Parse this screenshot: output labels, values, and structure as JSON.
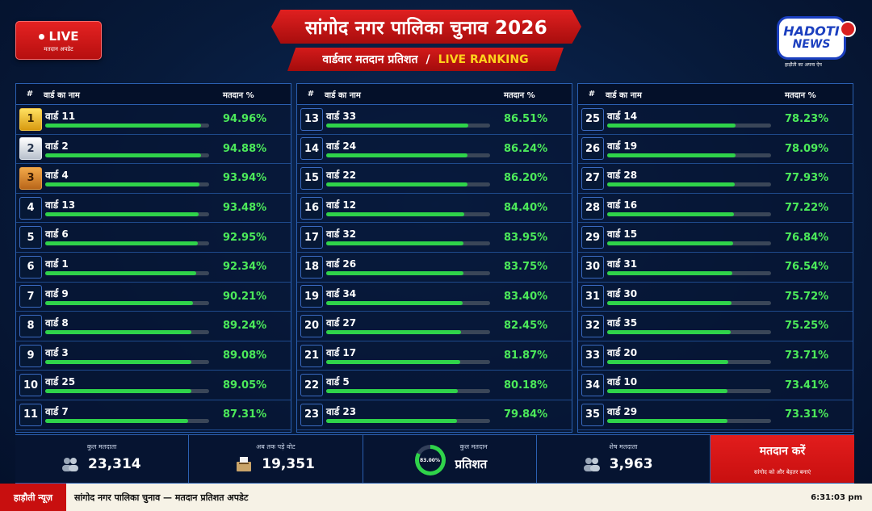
{
  "header": {
    "live_label": "LIVE",
    "live_sub": "मतदान अपडेट",
    "title": "सांगोद नगर पालिका चुनाव 2026",
    "subtitle": "वार्डवार मतदान प्रतिशत",
    "subtitle_sep": "/",
    "subtitle_live": "LIVE RANKING"
  },
  "logo": {
    "line1": "HADOTI",
    "line2": "NEWS",
    "tagline": "हाड़ौती का अपना ऐप"
  },
  "columns": {
    "num": "#",
    "name": "वार्ड का नाम",
    "pct": "मतदान %"
  },
  "colors": {
    "accent_red": "#c80f0f",
    "bar_green": "#2fd34a",
    "pct_green": "#4cea5a",
    "gold": "#d89a10"
  },
  "panels": [
    [
      {
        "rank": "1",
        "ward": "वार्ड 11",
        "pct": "94.96%",
        "value": 94.96
      },
      {
        "rank": "2",
        "ward": "वार्ड 2",
        "pct": "94.88%",
        "value": 94.88
      },
      {
        "rank": "3",
        "ward": "वार्ड 4",
        "pct": "93.94%",
        "value": 93.94
      },
      {
        "rank": "4",
        "ward": "वार्ड 13",
        "pct": "93.48%",
        "value": 93.48
      },
      {
        "rank": "5",
        "ward": "वार्ड 6",
        "pct": "92.95%",
        "value": 92.95
      },
      {
        "rank": "6",
        "ward": "वार्ड 1",
        "pct": "92.34%",
        "value": 92.34
      },
      {
        "rank": "7",
        "ward": "वार्ड 9",
        "pct": "90.21%",
        "value": 90.21
      },
      {
        "rank": "8",
        "ward": "वार्ड 8",
        "pct": "89.24%",
        "value": 89.24
      },
      {
        "rank": "9",
        "ward": "वार्ड 3",
        "pct": "89.08%",
        "value": 89.08
      },
      {
        "rank": "10",
        "ward": "वार्ड 25",
        "pct": "89.05%",
        "value": 89.05
      },
      {
        "rank": "11",
        "ward": "वार्ड 7",
        "pct": "87.31%",
        "value": 87.31
      }
    ],
    [
      {
        "rank": "13",
        "ward": "वार्ड 33",
        "pct": "86.51%",
        "value": 86.51
      },
      {
        "rank": "14",
        "ward": "वार्ड 24",
        "pct": "86.24%",
        "value": 86.24
      },
      {
        "rank": "15",
        "ward": "वार्ड 22",
        "pct": "86.20%",
        "value": 86.2
      },
      {
        "rank": "16",
        "ward": "वार्ड 12",
        "pct": "84.40%",
        "value": 84.4
      },
      {
        "rank": "17",
        "ward": "वार्ड 32",
        "pct": "83.95%",
        "value": 83.95
      },
      {
        "rank": "18",
        "ward": "वार्ड 26",
        "pct": "83.75%",
        "value": 83.75
      },
      {
        "rank": "19",
        "ward": "वार्ड 34",
        "pct": "83.40%",
        "value": 83.4
      },
      {
        "rank": "20",
        "ward": "वार्ड 27",
        "pct": "82.45%",
        "value": 82.45
      },
      {
        "rank": "21",
        "ward": "वार्ड 17",
        "pct": "81.87%",
        "value": 81.87
      },
      {
        "rank": "22",
        "ward": "वार्ड 5",
        "pct": "80.18%",
        "value": 80.18
      },
      {
        "rank": "23",
        "ward": "वार्ड 23",
        "pct": "79.84%",
        "value": 79.84
      }
    ],
    [
      {
        "rank": "25",
        "ward": "वार्ड 14",
        "pct": "78.23%",
        "value": 78.23
      },
      {
        "rank": "26",
        "ward": "वार्ड 19",
        "pct": "78.09%",
        "value": 78.09
      },
      {
        "rank": "27",
        "ward": "वार्ड 28",
        "pct": "77.93%",
        "value": 77.93
      },
      {
        "rank": "28",
        "ward": "वार्ड 16",
        "pct": "77.22%",
        "value": 77.22
      },
      {
        "rank": "29",
        "ward": "वार्ड 15",
        "pct": "76.84%",
        "value": 76.84
      },
      {
        "rank": "30",
        "ward": "वार्ड 31",
        "pct": "76.54%",
        "value": 76.54
      },
      {
        "rank": "31",
        "ward": "वार्ड 30",
        "pct": "75.72%",
        "value": 75.72
      },
      {
        "rank": "32",
        "ward": "वार्ड 35",
        "pct": "75.25%",
        "value": 75.25
      },
      {
        "rank": "33",
        "ward": "वार्ड 20",
        "pct": "73.71%",
        "value": 73.71
      },
      {
        "rank": "34",
        "ward": "वार्ड 10",
        "pct": "73.41%",
        "value": 73.41
      },
      {
        "rank": "35",
        "ward": "वार्ड 29",
        "pct": "73.31%",
        "value": 73.31
      }
    ]
  ],
  "stats": {
    "total_voters_label": "कुल मतदाता",
    "total_voters": "23,314",
    "votes_cast_label": "अब तक पड़े वोट",
    "votes_cast": "19,351",
    "turnout_label": "कुल मतदान",
    "turnout_ring": "83.00%",
    "turnout_value": 83.0,
    "turnout_word": "प्रतिशत",
    "remaining_label": "शेष मतदाता",
    "remaining": "3,963",
    "cta_main": "मतदान करें",
    "cta_sub": "सांगोद को और बेहतर बनाएं"
  },
  "ticker": {
    "brand": "हाड़ौती न्यूज़",
    "text": "सांगोद नगर पालिका चुनाव — मतदान प्रतिशत अपडेट",
    "time": "6:31:03 pm"
  }
}
